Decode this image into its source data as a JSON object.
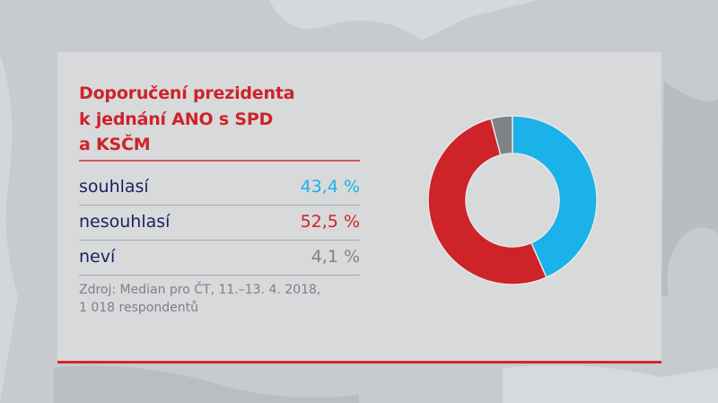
{
  "title": {
    "lines": [
      "Doporučení prezidenta",
      "k jednání ANO s SPD",
      "a KSČM"
    ]
  },
  "rows": [
    {
      "label": "souhlasí",
      "value": "43,4 %",
      "color": "#1ab2e8"
    },
    {
      "label": "nesouhlasí",
      "value": "52,5 %",
      "color": "#cd2329"
    },
    {
      "label": "neví",
      "value": "4,1 %",
      "color": "#808385"
    }
  ],
  "source": {
    "line1": "Zdroj: Median pro ČT, 11.–13. 4. 2018,",
    "line2": "1 018 respondentů"
  },
  "colors": {
    "accent_red": "#cd2329",
    "blue": "#1ab2e8",
    "gray": "#808385",
    "label_navy": "#1c1f5e",
    "panel": "#d8d9da"
  },
  "chart_data": {
    "type": "pie",
    "variant": "donut",
    "title": "Doporučení prezidenta k jednání ANO s SPD a KSČM",
    "categories": [
      "souhlasí",
      "nesouhlasí",
      "neví"
    ],
    "values": [
      43.4,
      52.5,
      4.1
    ],
    "unit": "%",
    "colors": [
      "#1ab2e8",
      "#cd2329",
      "#808385"
    ],
    "start_angle": "12 o'clock, clockwise",
    "legend": "table at left",
    "source": "Zdroj: Median pro ČT, 11.–13. 4. 2018, 1 018 respondentů"
  }
}
